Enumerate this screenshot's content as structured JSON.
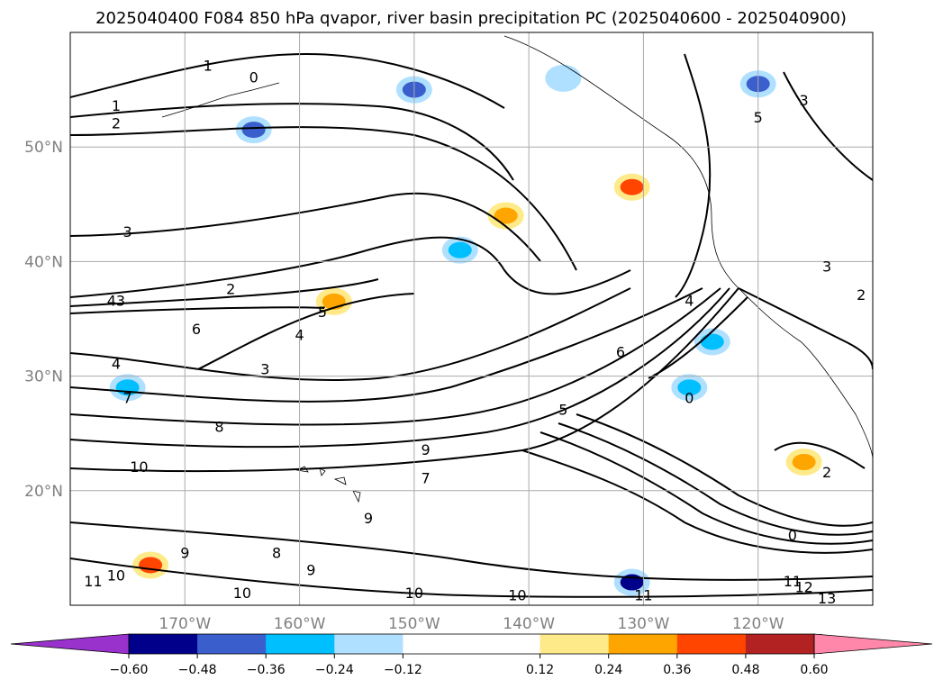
{
  "chart_data": {
    "type": "heatmap",
    "title": "2025040400 F084 850 hPa qvapor, river basin precipitation PC (2025040600 - 2025040900)",
    "map_extent": {
      "lon_min": -180,
      "lon_max": -110,
      "lat_min": 10,
      "lat_max": 60
    },
    "grid": true,
    "x_ticks": [
      {
        "value": -170,
        "label": "170°W"
      },
      {
        "value": -160,
        "label": "160°W"
      },
      {
        "value": -150,
        "label": "150°W"
      },
      {
        "value": -140,
        "label": "140°W"
      },
      {
        "value": -130,
        "label": "130°W"
      },
      {
        "value": -120,
        "label": "120°W"
      }
    ],
    "y_ticks": [
      {
        "value": 20,
        "label": "20°N"
      },
      {
        "value": 30,
        "label": "30°N"
      },
      {
        "value": 40,
        "label": "40°N"
      },
      {
        "value": 50,
        "label": "50°N"
      }
    ],
    "colorbar": {
      "location": "bottom",
      "levels": [
        -0.72,
        -0.6,
        -0.48,
        -0.36,
        -0.24,
        -0.12,
        0.12,
        0.24,
        0.36,
        0.48,
        0.6,
        0.72
      ],
      "tick_labels": [
        "−0.60",
        "−0.48",
        "−0.36",
        "−0.24",
        "−0.12",
        "0.12",
        "0.24",
        "0.36",
        "0.48",
        "0.60"
      ],
      "tick_values": [
        -0.6,
        -0.48,
        -0.36,
        -0.24,
        -0.12,
        0.12,
        0.24,
        0.36,
        0.48,
        0.6
      ],
      "colors": [
        "#9932cc",
        "#00008b",
        "#3a5fcd",
        "#00bfff",
        "#b0e0ff",
        "#ffffff",
        "#ffea8a",
        "#ffa500",
        "#ff4500",
        "#b22222",
        "#ff88aa"
      ],
      "under_color": "#9932cc",
      "over_color": "#ff88aa"
    },
    "shaded_regions": [
      {
        "lon": -164,
        "lat": 51.5,
        "value": -0.42
      },
      {
        "lon": -150,
        "lat": 55.0,
        "value": -0.38
      },
      {
        "lon": -137,
        "lat": 56.0,
        "value": -0.2
      },
      {
        "lon": -131,
        "lat": 46.5,
        "value": 0.45
      },
      {
        "lon": -120,
        "lat": 55.5,
        "value": -0.4
      },
      {
        "lon": -157,
        "lat": 36.5,
        "value": 0.35
      },
      {
        "lon": -175,
        "lat": 29.0,
        "value": -0.3
      },
      {
        "lon": -126,
        "lat": 29.0,
        "value": -0.3
      },
      {
        "lon": -124,
        "lat": 33.0,
        "value": -0.28
      },
      {
        "lon": -131,
        "lat": 12.0,
        "value": -0.5
      },
      {
        "lon": -173,
        "lat": 13.5,
        "value": 0.4
      },
      {
        "lon": -116,
        "lat": 22.5,
        "value": 0.32
      },
      {
        "lon": -146,
        "lat": 41.0,
        "value": -0.3
      },
      {
        "lon": -142,
        "lat": 44.0,
        "value": 0.25
      }
    ],
    "contour_labels": [
      {
        "text": "1",
        "lon": -168,
        "lat": 57.0
      },
      {
        "text": "0",
        "lon": -164,
        "lat": 56.0
      },
      {
        "text": "1",
        "lon": -176,
        "lat": 53.5
      },
      {
        "text": "2",
        "lon": -176,
        "lat": 52.0
      },
      {
        "text": "3",
        "lon": -175,
        "lat": 42.5
      },
      {
        "text": "43",
        "lon": -176,
        "lat": 36.5
      },
      {
        "text": "2",
        "lon": -166,
        "lat": 37.5
      },
      {
        "text": "6",
        "lon": -169,
        "lat": 34.0
      },
      {
        "text": "5",
        "lon": -158,
        "lat": 35.5
      },
      {
        "text": "4",
        "lon": -160,
        "lat": 33.5
      },
      {
        "text": "3",
        "lon": -163,
        "lat": 30.5
      },
      {
        "text": "4",
        "lon": -176,
        "lat": 31.0
      },
      {
        "text": "7",
        "lon": -175,
        "lat": 28.0
      },
      {
        "text": "8",
        "lon": -167,
        "lat": 25.5
      },
      {
        "text": "10",
        "lon": -174,
        "lat": 22.0
      },
      {
        "text": "9",
        "lon": -149,
        "lat": 23.5
      },
      {
        "text": "7",
        "lon": -149,
        "lat": 21.0
      },
      {
        "text": "9",
        "lon": -170,
        "lat": 14.5
      },
      {
        "text": "8",
        "lon": -162,
        "lat": 14.5
      },
      {
        "text": "9",
        "lon": -159,
        "lat": 13.0
      },
      {
        "text": "9",
        "lon": -154,
        "lat": 17.5
      },
      {
        "text": "10",
        "lon": -176,
        "lat": 12.5
      },
      {
        "text": "11",
        "lon": -178,
        "lat": 12.0
      },
      {
        "text": "10",
        "lon": -165,
        "lat": 11.0
      },
      {
        "text": "10",
        "lon": -150,
        "lat": 11.0
      },
      {
        "text": "10",
        "lon": -141,
        "lat": 10.8
      },
      {
        "text": "11",
        "lon": -130,
        "lat": 10.8
      },
      {
        "text": "6",
        "lon": -132,
        "lat": 32.0
      },
      {
        "text": "5",
        "lon": -137,
        "lat": 27.0
      },
      {
        "text": "4",
        "lon": -126,
        "lat": 36.5
      },
      {
        "text": "0",
        "lon": -126,
        "lat": 28.0
      },
      {
        "text": "5",
        "lon": -120,
        "lat": 52.5
      },
      {
        "text": "3",
        "lon": -116,
        "lat": 54.0
      },
      {
        "text": "3",
        "lon": -114,
        "lat": 39.5
      },
      {
        "text": "2",
        "lon": -111,
        "lat": 37.0
      },
      {
        "text": "2",
        "lon": -114,
        "lat": 21.5
      },
      {
        "text": "0",
        "lon": -117,
        "lat": 16.0
      },
      {
        "text": "11",
        "lon": -117,
        "lat": 12.0
      },
      {
        "text": "12",
        "lon": -116,
        "lat": 11.5
      },
      {
        "text": "13",
        "lon": -114,
        "lat": 10.5
      }
    ]
  }
}
